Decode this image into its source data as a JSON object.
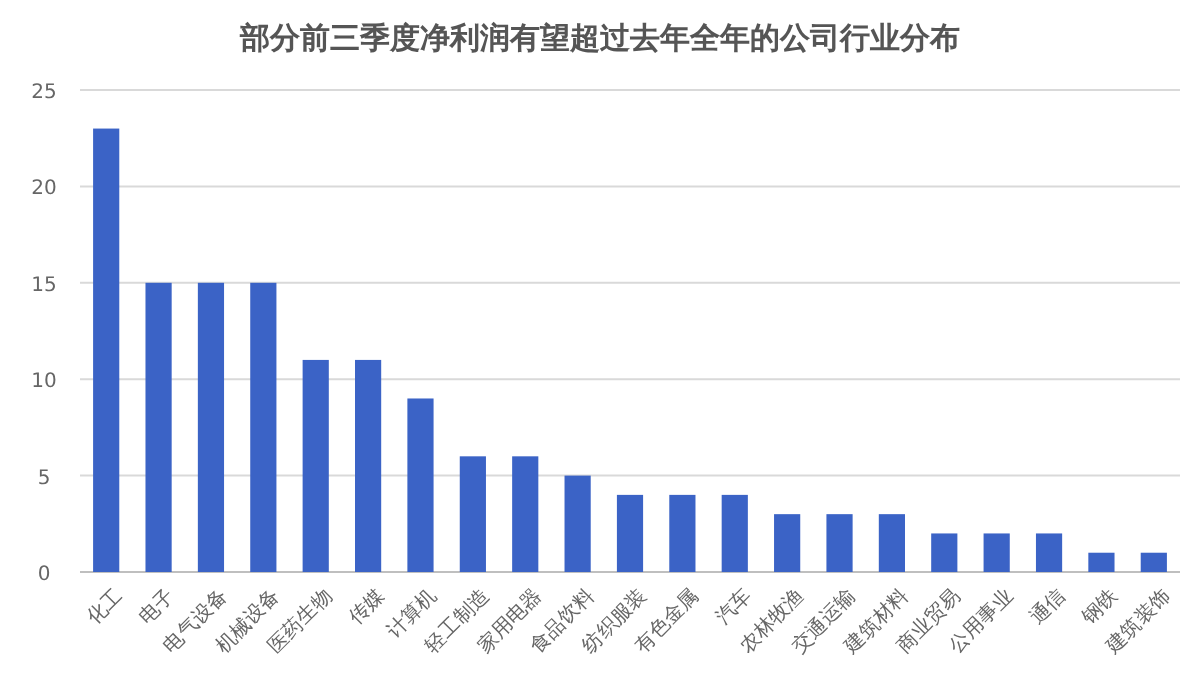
{
  "chart_data": {
    "type": "bar",
    "title": "部分前三季度净利润有望超过去年全年的公司行业分布",
    "categories": [
      "化工",
      "电子",
      "电气设备",
      "机械设备",
      "医药生物",
      "传媒",
      "计算机",
      "轻工制造",
      "家用电器",
      "食品饮料",
      "纺织服装",
      "有色金属",
      "汽车",
      "农林牧渔",
      "交通运输",
      "建筑材料",
      "商业贸易",
      "公用事业",
      "通信",
      "钢铁",
      "建筑装饰"
    ],
    "values": [
      23,
      15,
      15,
      15,
      11,
      11,
      9,
      6,
      6,
      5,
      4,
      4,
      4,
      3,
      3,
      3,
      2,
      2,
      2,
      1,
      1
    ],
    "color": "#3b63c6",
    "ylim": [
      0,
      25
    ],
    "yticks": [
      0,
      5,
      10,
      15,
      20,
      25
    ],
    "grid": "y"
  }
}
